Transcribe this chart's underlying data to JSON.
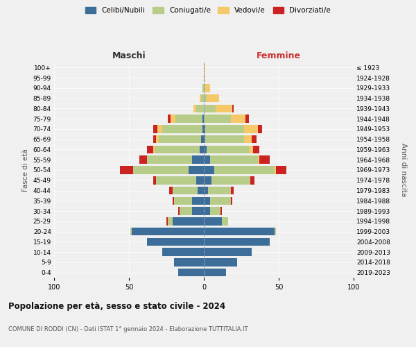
{
  "age_groups": [
    "0-4",
    "5-9",
    "10-14",
    "15-19",
    "20-24",
    "25-29",
    "30-34",
    "35-39",
    "40-44",
    "45-49",
    "50-54",
    "55-59",
    "60-64",
    "65-69",
    "70-74",
    "75-79",
    "80-84",
    "85-89",
    "90-94",
    "95-99",
    "100+"
  ],
  "birth_years": [
    "2019-2023",
    "2014-2018",
    "2009-2013",
    "2004-2008",
    "1999-2003",
    "1994-1998",
    "1989-1993",
    "1984-1988",
    "1979-1983",
    "1974-1978",
    "1969-1973",
    "1964-1968",
    "1959-1963",
    "1954-1958",
    "1949-1953",
    "1944-1948",
    "1939-1943",
    "1934-1938",
    "1929-1933",
    "1924-1928",
    "≤ 1923"
  ],
  "male": {
    "celibi": [
      17,
      20,
      28,
      38,
      48,
      21,
      8,
      8,
      4,
      5,
      10,
      8,
      3,
      2,
      1,
      1,
      0,
      0,
      0,
      0,
      0
    ],
    "coniugati": [
      0,
      0,
      0,
      0,
      1,
      3,
      8,
      12,
      17,
      27,
      37,
      30,
      30,
      28,
      27,
      18,
      5,
      2,
      1,
      0,
      0
    ],
    "vedovi": [
      0,
      0,
      0,
      0,
      0,
      0,
      0,
      0,
      0,
      0,
      0,
      0,
      1,
      2,
      3,
      3,
      2,
      1,
      0,
      0,
      0
    ],
    "divorziati": [
      0,
      0,
      0,
      0,
      0,
      1,
      1,
      1,
      2,
      2,
      9,
      5,
      4,
      2,
      3,
      2,
      0,
      0,
      0,
      0,
      0
    ]
  },
  "female": {
    "nubili": [
      15,
      22,
      32,
      44,
      47,
      12,
      4,
      4,
      3,
      5,
      7,
      4,
      2,
      1,
      1,
      0,
      0,
      0,
      0,
      0,
      0
    ],
    "coniugate": [
      0,
      0,
      0,
      0,
      1,
      4,
      7,
      14,
      15,
      26,
      40,
      32,
      28,
      26,
      26,
      18,
      8,
      2,
      1,
      0,
      0
    ],
    "vedove": [
      0,
      0,
      0,
      0,
      0,
      0,
      0,
      0,
      0,
      0,
      1,
      1,
      3,
      5,
      9,
      10,
      11,
      8,
      3,
      1,
      1
    ],
    "divorziate": [
      0,
      0,
      0,
      0,
      0,
      0,
      1,
      1,
      2,
      3,
      7,
      7,
      4,
      3,
      3,
      2,
      1,
      0,
      0,
      0,
      0
    ]
  },
  "colors": {
    "celibi": "#3d6e99",
    "coniugati": "#b8cc8a",
    "vedovi": "#f5c96a",
    "divorziati": "#cc2222"
  },
  "xlim": 100,
  "title": "Popolazione per età, sesso e stato civile - 2024",
  "subtitle": "COMUNE DI RODDI (CN) - Dati ISTAT 1° gennaio 2024 - Elaborazione TUTTITALIA.IT",
  "xlabel_left": "Maschi",
  "xlabel_right": "Femmine",
  "ylabel_left": "Fasce di età",
  "ylabel_right": "Anni di nascita",
  "legend_labels": [
    "Celibi/Nubili",
    "Coniugati/e",
    "Vedovi/e",
    "Divorziati/e"
  ],
  "background_color": "#f0f0f0"
}
